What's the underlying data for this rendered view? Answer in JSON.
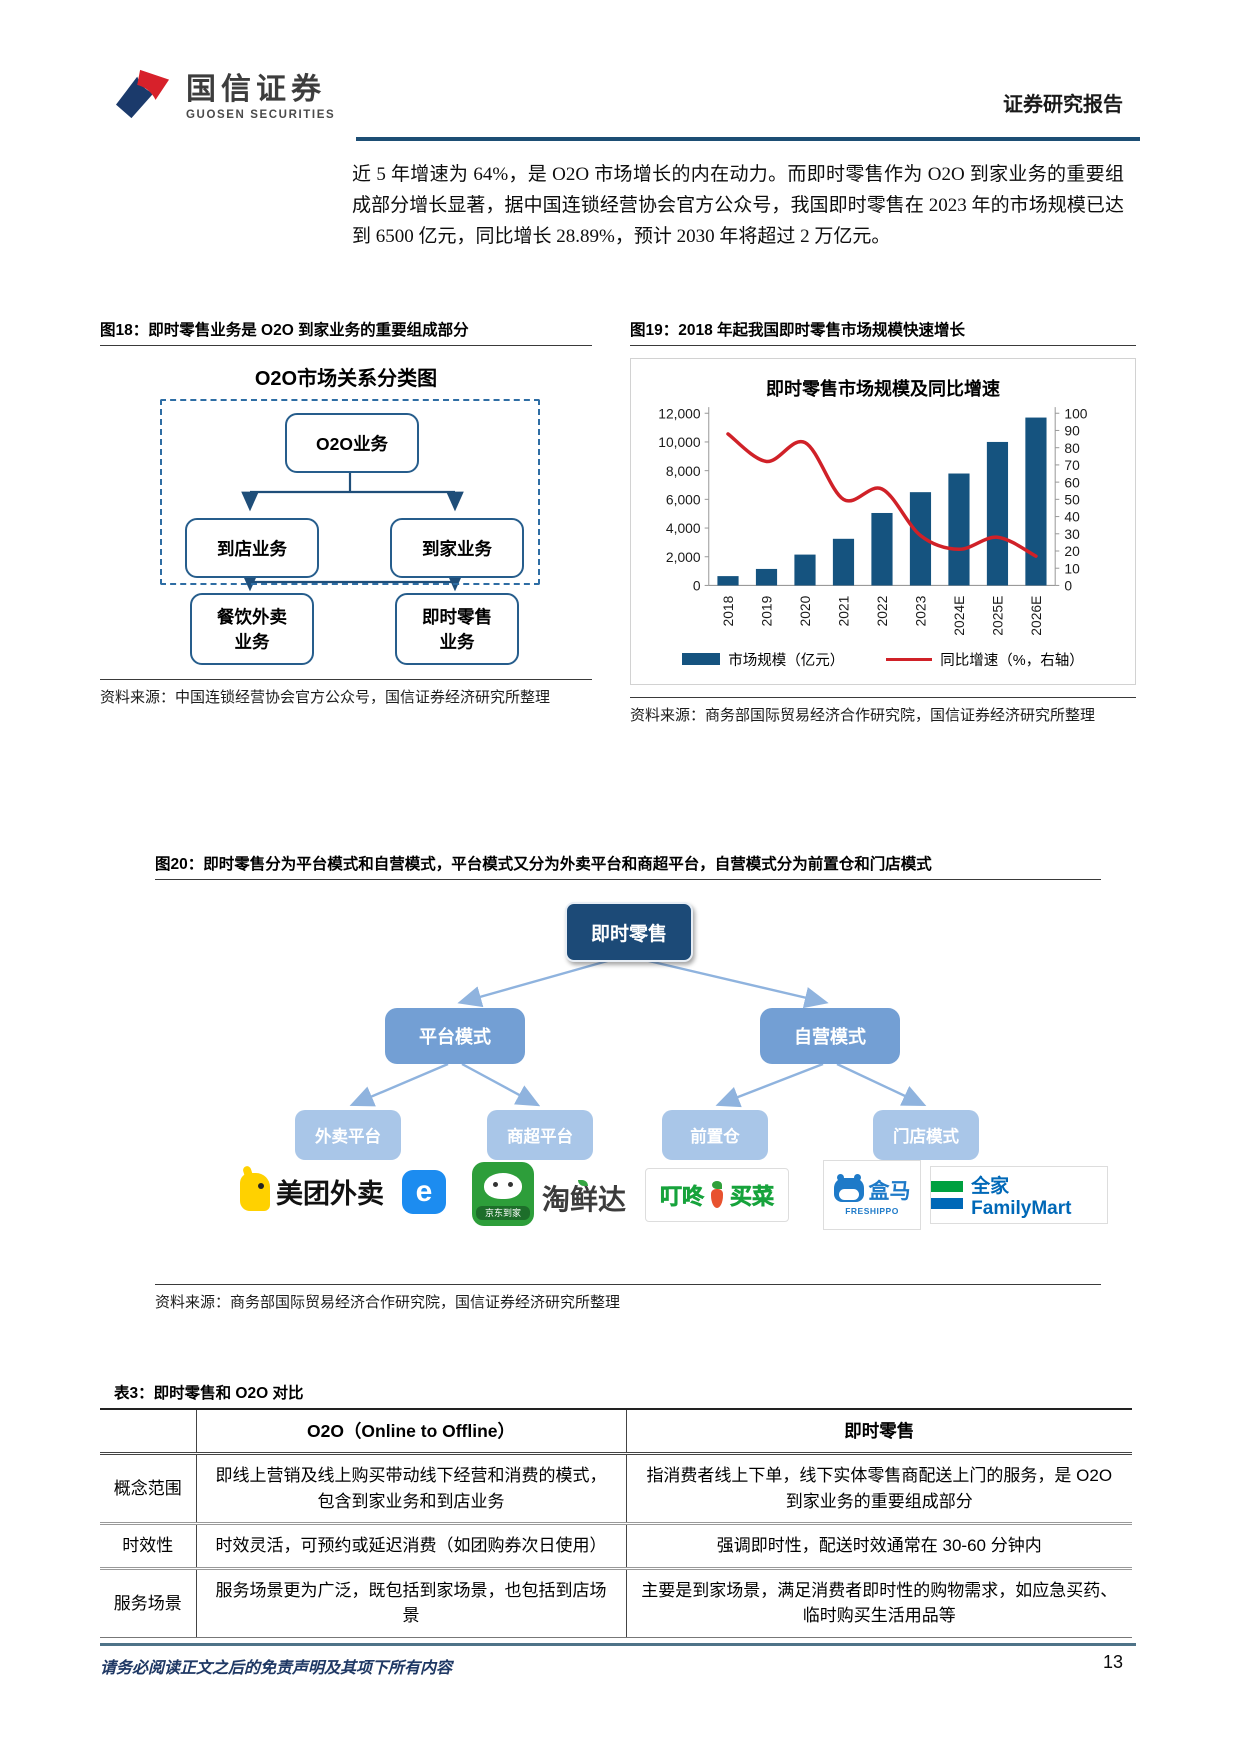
{
  "header": {
    "brand_cn": "国信证券",
    "brand_en": "GUOSEN SECURITIES",
    "report_type": "证券研究报告"
  },
  "intro_paragraph": "近 5 年增速为 64%，是 O2O 市场增长的内在动力。而即时零售作为 O2O 到家业务的重要组成部分增长显著，据中国连锁经营协会官方公众号，我国即时零售在 2023 年的市场规模已达到 6500 亿元，同比增长 28.89%，预计 2030 年将超过 2 万亿元。",
  "figure18": {
    "caption": "图18：即时零售业务是 O2O 到家业务的重要组成部分",
    "diagram_title": "O2O市场关系分类图",
    "nodes": {
      "root": "O2O业务",
      "store": "到店业务",
      "home": "到家业务",
      "food_delivery": "餐饮外卖业务",
      "instant_retail": "即时零售业务"
    },
    "source": "资料来源：中国连锁经营协会官方公众号，国信证券经济研究所整理"
  },
  "figure19": {
    "caption": "图19：2018 年起我国即时零售市场规模快速增长",
    "source": "资料来源：商务部国际贸易经济合作研究院，国信证券经济研究所整理"
  },
  "chart_data": {
    "type": "bar+line",
    "title": "即时零售市场规模及同比增速",
    "categories": [
      "2018",
      "2019",
      "2020",
      "2021",
      "2022",
      "2023",
      "2024E",
      "2025E",
      "2026E"
    ],
    "series": [
      {
        "name": "市场规模（亿元）",
        "type": "bar",
        "axis": "left",
        "color": "#15537f",
        "values": [
          650,
          1150,
          2150,
          3250,
          5050,
          6500,
          7800,
          10000,
          11700
        ]
      },
      {
        "name": "同比增速（%，右轴）",
        "type": "line",
        "axis": "right",
        "color": "#d02128",
        "values": [
          88,
          72,
          83,
          50,
          56,
          29,
          21,
          28,
          17
        ]
      }
    ],
    "left_axis": {
      "min": 0,
      "max": 12000,
      "step": 2000
    },
    "right_axis": {
      "min": 0,
      "max": 100,
      "step": 10
    },
    "grid": false,
    "legend_position": "bottom"
  },
  "figure20": {
    "caption": "图20：即时零售分为平台模式和自营模式，平台模式又分为外卖平台和商超平台，自营模式分为前置仓和门店模式",
    "root": "即时零售",
    "level2": [
      "平台模式",
      "自营模式"
    ],
    "level3": [
      "外卖平台",
      "商超平台",
      "前置仓",
      "门店模式"
    ],
    "logos": {
      "meituan": "美团外卖",
      "eleme": "e",
      "jd_daojia": "京东到家",
      "taoxianda": "淘鲜达",
      "dingdong_1": "叮咚",
      "dingdong_2": "买菜",
      "hema_cn": "盒马",
      "hema_en": "FRESHIPPO",
      "familymart": "全家 FamilyMart"
    },
    "source": "资料来源：商务部国际贸易经济合作研究院，国信证券经济研究所整理"
  },
  "table3": {
    "caption": "表3：即时零售和 O2O 对比",
    "headers": [
      "",
      "O2O（Online to Offline）",
      "即时零售"
    ],
    "rows": [
      {
        "label": "概念范围",
        "o2o": "即线上营销及线上购买带动线下经营和消费的模式，包含到家业务和到店业务",
        "instant": "指消费者线上下单，线下实体零售商配送上门的服务，是 O2O 到家业务的重要组成部分"
      },
      {
        "label": "时效性",
        "o2o": "时效灵活，可预约或延迟消费（如团购券次日使用）",
        "instant": "强调即时性，配送时效通常在 30-60 分钟内"
      },
      {
        "label": "服务场景",
        "o2o": "服务场景更为广泛，既包括到家场景，也包括到店场景",
        "instant": "主要是到家场景，满足消费者即时性的购物需求，如应急买药、临时购买生活用品等"
      }
    ]
  },
  "footer": {
    "disclaimer": "请务必阅读正文之后的免责声明及其项下所有内容",
    "page_number": "13"
  },
  "palette": {
    "header_rule": "#1d4e74",
    "bar_blue": "#15537f",
    "line_red": "#d02128",
    "tree_root": "#1c4a77",
    "tree_l2": "#739fd4",
    "tree_l3": "#a9c6e8",
    "footer_rule": "#4e7388",
    "footer_text": "#1f3864"
  }
}
